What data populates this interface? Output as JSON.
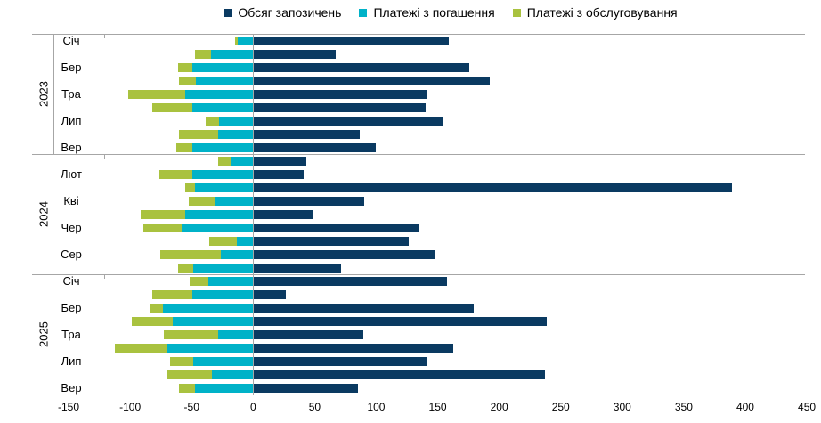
{
  "chart_data": {
    "type": "bar",
    "orientation": "horizontal-diverging-stacked",
    "title": "",
    "legend_position": "top-center",
    "grid": "off",
    "colors": {
      "grid_line": "#a6a6a6",
      "zero_axis": "#a6a6a6",
      "text": "#000000"
    },
    "series": [
      {
        "key": "borrowing",
        "name": "Обсяг запозичень",
        "color": "#0a3a61"
      },
      {
        "key": "repayment",
        "name": "Платежі з погашення",
        "color": "#00b2c8"
      },
      {
        "key": "servicing",
        "name": "Платежі з обслуговування",
        "color": "#a9c23f"
      }
    ],
    "x_axis": {
      "min": -150,
      "max": 450,
      "tick_step": 50,
      "ticks": [
        -150,
        -100,
        -50,
        0,
        50,
        100,
        150,
        200,
        250,
        300,
        350,
        400,
        450
      ]
    },
    "groups": [
      {
        "year": "2023",
        "rows": [
          {
            "month": "Січ",
            "borrowing": 159,
            "repayment": -12,
            "servicing": -2
          },
          {
            "month": "",
            "borrowing": 67,
            "repayment": -34,
            "servicing": -13
          },
          {
            "month": "Бер",
            "borrowing": 175,
            "repayment": -49,
            "servicing": -12
          },
          {
            "month": "",
            "borrowing": 192,
            "repayment": -46,
            "servicing": -14
          },
          {
            "month": "Тра",
            "borrowing": 141,
            "repayment": -55,
            "servicing": -46
          },
          {
            "month": "",
            "borrowing": 140,
            "repayment": -49,
            "servicing": -33
          },
          {
            "month": "Лип",
            "borrowing": 154,
            "repayment": -27,
            "servicing": -11
          },
          {
            "month": "",
            "borrowing": 86,
            "repayment": -28,
            "servicing": -32
          },
          {
            "month": "Вер",
            "borrowing": 99,
            "repayment": -49,
            "servicing": -13
          }
        ]
      },
      {
        "year": "2024",
        "rows": [
          {
            "month": "",
            "borrowing": 43,
            "repayment": -18,
            "servicing": -10
          },
          {
            "month": "Лют",
            "borrowing": 41,
            "repayment": -49,
            "servicing": -27
          },
          {
            "month": "",
            "borrowing": 389,
            "repayment": -47,
            "servicing": -8
          },
          {
            "month": "Кві",
            "borrowing": 90,
            "repayment": -31,
            "servicing": -21
          },
          {
            "month": "",
            "borrowing": 48,
            "repayment": -55,
            "servicing": -36
          },
          {
            "month": "Чер",
            "borrowing": 134,
            "repayment": -58,
            "servicing": -31
          },
          {
            "month": "",
            "borrowing": 126,
            "repayment": -13,
            "servicing": -22
          },
          {
            "month": "Сер",
            "borrowing": 147,
            "repayment": -26,
            "servicing": -49
          },
          {
            "month": "",
            "borrowing": 71,
            "repayment": -48,
            "servicing": -13
          }
        ]
      },
      {
        "year": "2025",
        "rows": [
          {
            "month": "Січ",
            "borrowing": 157,
            "repayment": -36,
            "servicing": -15
          },
          {
            "month": "",
            "borrowing": 26,
            "repayment": -49,
            "servicing": -33
          },
          {
            "month": "Бер",
            "borrowing": 179,
            "repayment": -73,
            "servicing": -10
          },
          {
            "month": "",
            "borrowing": 238,
            "repayment": -65,
            "servicing": -33
          },
          {
            "month": "Тра",
            "borrowing": 89,
            "repayment": -28,
            "servicing": -44
          },
          {
            "month": "",
            "borrowing": 162,
            "repayment": -69,
            "servicing": -43
          },
          {
            "month": "Лип",
            "borrowing": 141,
            "repayment": -48,
            "servicing": -19
          },
          {
            "month": "",
            "borrowing": 237,
            "repayment": -33,
            "servicing": -36
          },
          {
            "month": "Вер",
            "borrowing": 85,
            "repayment": -47,
            "servicing": -13
          }
        ]
      }
    ]
  }
}
